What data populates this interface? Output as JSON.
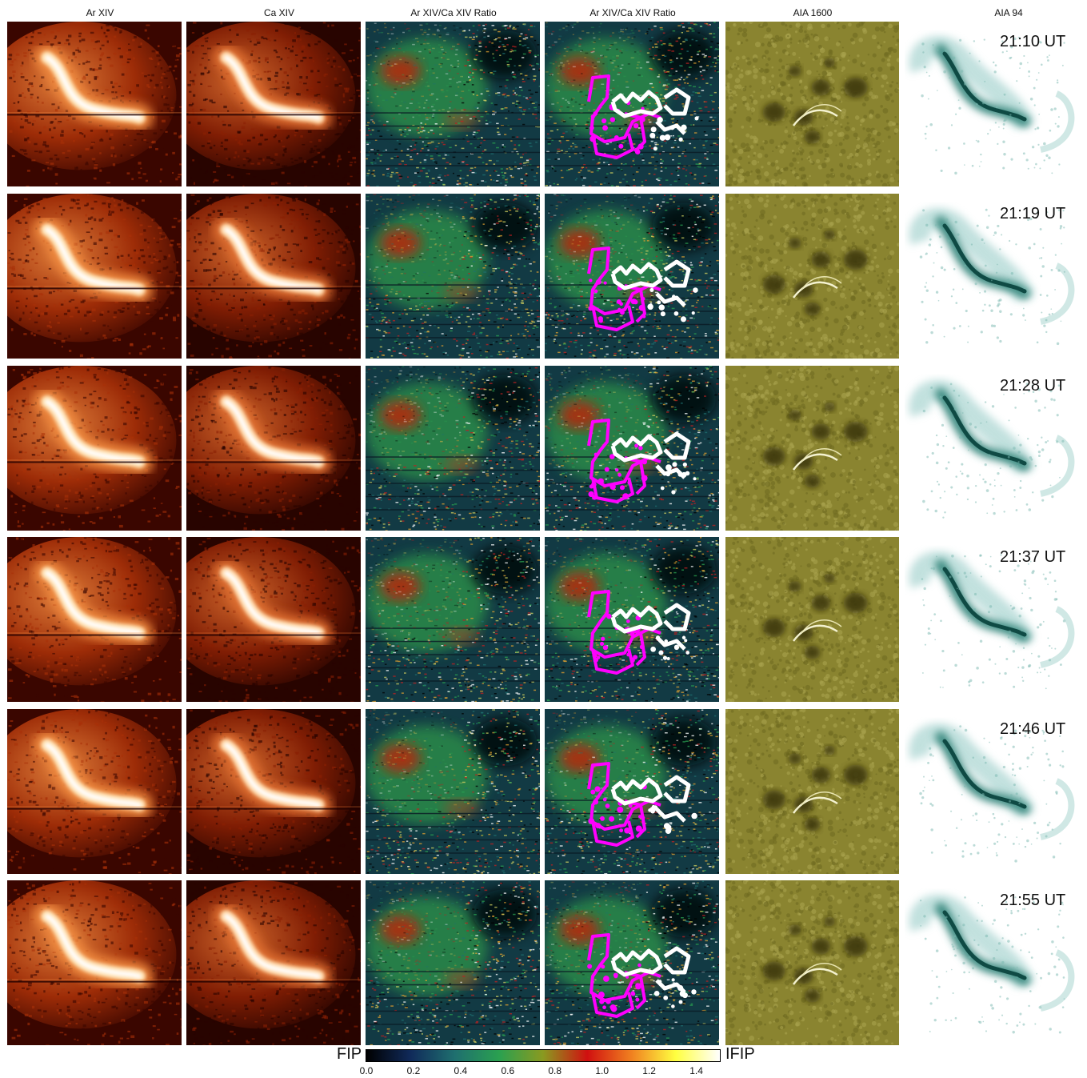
{
  "columns": [
    {
      "title": "Ar XIV",
      "kind": "arxiv"
    },
    {
      "title": "Ca XIV",
      "kind": "caxiv"
    },
    {
      "title": "Ar XIV/Ca XIV Ratio",
      "kind": "ratio"
    },
    {
      "title": "Ar XIV/Ca XIV Ratio",
      "kind": "ratio-contours"
    },
    {
      "title": "AIA 1600",
      "kind": "aia1600"
    },
    {
      "title": "AIA 94",
      "kind": "aia94"
    }
  ],
  "rows": [
    {
      "time": "21:10 UT"
    },
    {
      "time": "21:19 UT"
    },
    {
      "time": "21:28 UT"
    },
    {
      "time": "21:37 UT"
    },
    {
      "time": "21:46 UT"
    },
    {
      "time": "21:55 UT"
    }
  ],
  "colorbar": {
    "left_label": "FIP",
    "right_label": "IFIP",
    "ticks": [
      "0.0",
      "0.2",
      "0.4",
      "0.6",
      "0.8",
      "1.0",
      "1.2",
      "1.4"
    ],
    "range": [
      0.0,
      1.5
    ],
    "colormap": [
      "#000000",
      "#102a5a",
      "#1f6f6f",
      "#2aa050",
      "#8a9a20",
      "#d01010",
      "#f08020",
      "#ffff40",
      "#ffffff"
    ]
  },
  "colors": {
    "contour_magenta": "#ff00ff",
    "contour_white": "#ffffff"
  }
}
